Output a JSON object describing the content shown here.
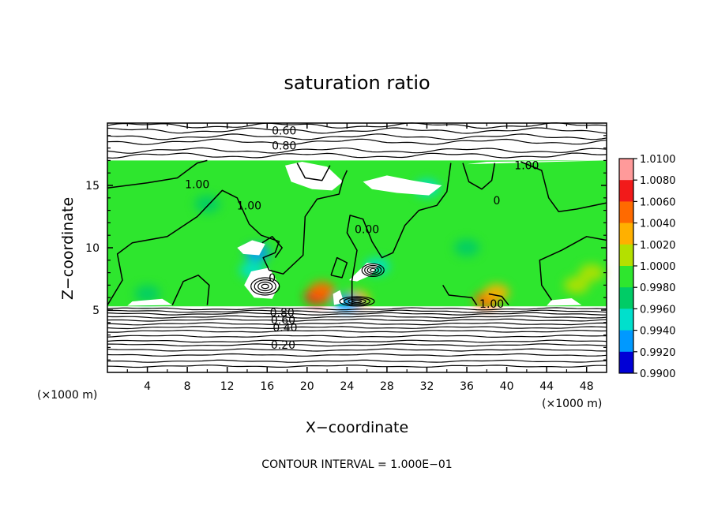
{
  "chart_data": {
    "type": "heatmap",
    "title": "saturation ratio",
    "xlabel": "X−coordinate",
    "ylabel": "Z−coordinate",
    "x_unit_label_left": "(×1000 m)",
    "x_unit_label_right": "(×1000 m)",
    "footer": "CONTOUR INTERVAL = 1.000E−01",
    "xlim": [
      0,
      50
    ],
    "ylim": [
      0,
      20
    ],
    "x_ticks": [
      4,
      8,
      12,
      16,
      20,
      24,
      28,
      32,
      36,
      40,
      44,
      48
    ],
    "y_ticks": [
      5,
      10,
      15
    ],
    "colorbar": {
      "min": 0.99,
      "max": 1.01,
      "levels": [
        {
          "label": "1.0100",
          "color": "#ff9a9a"
        },
        {
          "label": "1.0080",
          "color": "#f21a1a"
        },
        {
          "label": "1.0060",
          "color": "#ff6a00"
        },
        {
          "label": "1.0040",
          "color": "#ffb000"
        },
        {
          "label": "1.0020",
          "color": "#b4e000"
        },
        {
          "label": "1.0000",
          "color": "#2ee62e"
        },
        {
          "label": "0.9980",
          "color": "#00cc66"
        },
        {
          "label": "0.9960",
          "color": "#00e0cc"
        },
        {
          "label": "0.9940",
          "color": "#0099ff"
        },
        {
          "label": "0.9920",
          "color": "#0000d6"
        },
        {
          "label": "0.9900",
          "color": "#6a0aa6"
        }
      ]
    },
    "field_region": {
      "x_range": [
        0,
        50
      ],
      "z_range": [
        5.3,
        17.0
      ],
      "dominant_value": 1.0
    },
    "color_patches": [
      {
        "x": 21.0,
        "z": 6.1,
        "level": "1.0080"
      },
      {
        "x": 21.5,
        "z": 6.6,
        "level": "1.0060"
      },
      {
        "x": 25.0,
        "z": 5.9,
        "level": "1.0040"
      },
      {
        "x": 38.0,
        "z": 5.8,
        "level": "1.0060"
      },
      {
        "x": 39.0,
        "z": 6.4,
        "level": "1.0040"
      },
      {
        "x": 48.5,
        "z": 8.0,
        "level": "1.0020"
      },
      {
        "x": 47.0,
        "z": 7.0,
        "level": "1.0020"
      },
      {
        "x": 14.5,
        "z": 8.2,
        "level": "0.9960"
      },
      {
        "x": 27.0,
        "z": 8.5,
        "level": "0.9960"
      },
      {
        "x": 24.0,
        "z": 5.6,
        "level": "0.9940"
      },
      {
        "x": 32.0,
        "z": 14.8,
        "level": "0.9960"
      },
      {
        "x": 15.0,
        "z": 9.6,
        "level": "0.9940"
      },
      {
        "x": 4.0,
        "z": 6.3,
        "level": "0.9980"
      },
      {
        "x": 10.0,
        "z": 13.5,
        "level": "0.9980"
      },
      {
        "x": 36.0,
        "z": 10.0,
        "level": "0.9980"
      }
    ],
    "contour_labels": [
      {
        "text": "0.60",
        "x": 17.7,
        "z": 19.4
      },
      {
        "text": "0.80",
        "x": 17.7,
        "z": 18.2
      },
      {
        "text": "1.00",
        "x": 42.0,
        "z": 16.6
      },
      {
        "text": "1.00",
        "x": 9.0,
        "z": 15.1
      },
      {
        "text": "1.00",
        "x": 14.2,
        "z": 13.4
      },
      {
        "text": "0.00",
        "x": 26.0,
        "z": 11.5
      },
      {
        "text": "0",
        "x": 39.0,
        "z": 13.8
      },
      {
        "text": "0",
        "x": 16.5,
        "z": 7.6
      },
      {
        "text": "1.00",
        "x": 38.5,
        "z": 5.5
      },
      {
        "text": "0.80",
        "x": 17.5,
        "z": 4.8
      },
      {
        "text": "0.60",
        "x": 17.6,
        "z": 4.2
      },
      {
        "text": "0.40",
        "x": 17.8,
        "z": 3.6
      },
      {
        "text": "0.20",
        "x": 17.6,
        "z": 2.2
      }
    ]
  }
}
